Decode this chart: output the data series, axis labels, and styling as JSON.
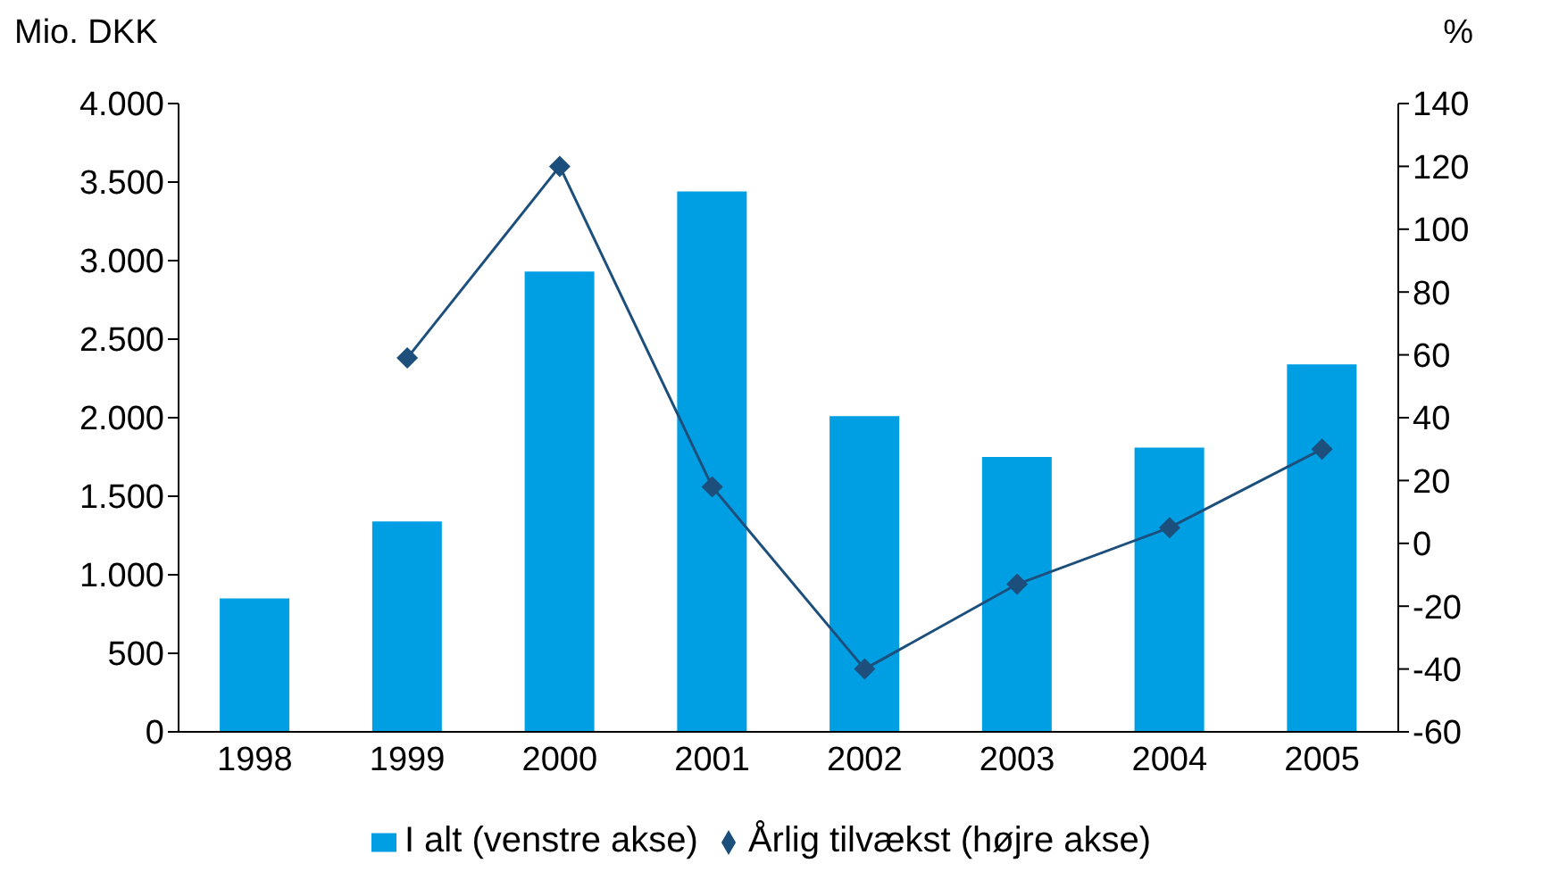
{
  "chart_data": {
    "type": "bar",
    "categories": [
      "1998",
      "1999",
      "2000",
      "2001",
      "2002",
      "2003",
      "2004",
      "2005"
    ],
    "series": [
      {
        "name": "I alt (venstre akse)",
        "color": "#009fe3",
        "values": [
          850,
          1340,
          2930,
          3440,
          2010,
          1750,
          1810,
          2340
        ]
      },
      {
        "name": "Årlig tilvækst (højre akse)",
        "type": "line",
        "axis": "y2",
        "color": "#1d4f7c",
        "marker": "diamond",
        "values": [
          null,
          59,
          120,
          18,
          -40,
          -13,
          5,
          30
        ]
      }
    ],
    "ylabel": "Mio. DKK",
    "y2label": "%",
    "ylim": [
      0,
      4000
    ],
    "yticks": [
      0,
      {
        "value": 500,
        "label": "500"
      },
      {
        "value": 1000,
        "label": "1.000"
      },
      {
        "value": 1500,
        "label": "1.500"
      },
      {
        "value": 2000,
        "label": "2.000"
      },
      {
        "value": 2500,
        "label": "2.500"
      },
      {
        "value": 3000,
        "label": "3.000"
      },
      {
        "value": 3500,
        "label": "3.500"
      },
      {
        "value": 4000,
        "label": "4.000"
      }
    ],
    "y2lim": [
      -60,
      140
    ],
    "y2ticks": [
      -60,
      -40,
      -20,
      0,
      20,
      40,
      60,
      80,
      100,
      120,
      140
    ],
    "grid": false,
    "legend": "bottom"
  }
}
